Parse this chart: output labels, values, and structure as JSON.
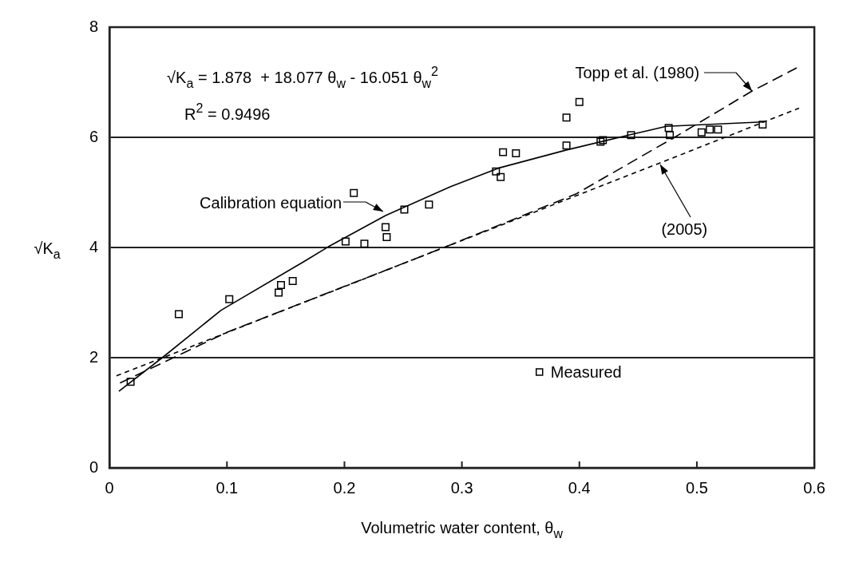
{
  "chart_data": {
    "type": "scatter",
    "xlabel": "Volumetric water content, θ$_{w}$",
    "ylabel": "√K$_{a}$",
    "xlim": [
      0,
      0.6
    ],
    "xticks": [
      0,
      0.1,
      0.2,
      0.3,
      0.4,
      0.5,
      0.6
    ],
    "ylim": [
      0,
      8
    ],
    "yticks": [
      0,
      2,
      4,
      6,
      8
    ],
    "grid": "y",
    "legend": "bottom right",
    "series": [
      {
        "name": "Measured",
        "type": "scatter",
        "marker": "square",
        "color": "#000000",
        "x": [
          0.018,
          0.059,
          0.102,
          0.144,
          0.146,
          0.156,
          0.201,
          0.208,
          0.217,
          0.235,
          0.236,
          0.251,
          0.272,
          0.329,
          0.333,
          0.335,
          0.346,
          0.389,
          0.389,
          0.4,
          0.418,
          0.42,
          0.444,
          0.476,
          0.477,
          0.504,
          0.511,
          0.518,
          0.556
        ],
        "values": [
          1.56,
          2.79,
          3.06,
          3.18,
          3.32,
          3.39,
          4.11,
          4.99,
          4.07,
          4.37,
          4.19,
          4.69,
          4.78,
          5.38,
          5.28,
          5.73,
          5.71,
          6.36,
          5.85,
          6.64,
          5.92,
          5.95,
          6.04,
          6.17,
          6.04,
          6.09,
          6.14,
          6.14,
          6.23
        ]
      },
      {
        "type": "line",
        "line_style": "solid",
        "marker": "none",
        "color": "#000000",
        "x": [
          0.008,
          0.045,
          0.095,
          0.166,
          0.186,
          0.235,
          0.29,
          0.331,
          0.389,
          0.444,
          0.474,
          0.556
        ],
        "values": [
          1.39,
          2.0,
          2.86,
          3.75,
          4.01,
          4.58,
          5.1,
          5.44,
          5.77,
          6.05,
          6.2,
          6.28
        ]
      },
      {
        "type": "line",
        "line_style": "dashed",
        "marker": "none",
        "color": "#000000",
        "x": [
          0.009,
          0.1,
          0.286,
          0.397,
          0.481,
          0.547,
          0.585
        ],
        "values": [
          1.54,
          2.46,
          4.01,
          4.97,
          6.0,
          6.84,
          7.26
        ]
      },
      {
        "type": "line",
        "line_style": "dotted",
        "marker": "none",
        "color": "#000000",
        "x": [
          0.006,
          0.468,
          0.587
        ],
        "values": [
          1.67,
          5.53,
          6.53
        ]
      }
    ],
    "annotations": [
      "√K$_{a}$ = 1.878  + 18.077 θ$_{w}$ - 16.051 θ$_{w}$$^{2}$",
      "R$^{2}$ = 0.9496",
      {
        "text": "Calibration equation",
        "x": 0.233,
        "y": 4.65
      },
      {
        "text": "Topp et al. (1980)",
        "x": 0.547,
        "y": 6.84
      },
      {
        "text": "(2005)",
        "x": 0.469,
        "y": 5.51
      }
    ]
  }
}
